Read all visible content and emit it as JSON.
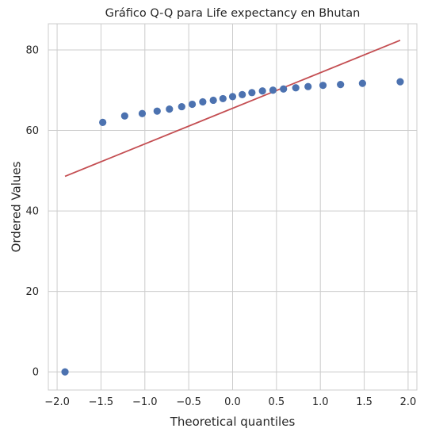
{
  "chart_data": {
    "type": "scatter",
    "title": "Gráfico Q-Q para Life expectancy en Bhutan",
    "xlabel": "Theoretical quantiles",
    "ylabel": "Ordered Values",
    "xlim": [
      -2.1,
      2.1
    ],
    "ylim": [
      -4.5,
      86.5
    ],
    "xticks": [
      -2.0,
      -1.5,
      -1.0,
      -0.5,
      0.0,
      0.5,
      1.0,
      1.5,
      2.0
    ],
    "xtick_labels": [
      "−2.0",
      "−1.5",
      "−1.0",
      "−0.5",
      "0.0",
      "0.5",
      "1.0",
      "1.5",
      "2.0"
    ],
    "yticks": [
      0,
      20,
      40,
      60,
      80
    ],
    "ytick_labels": [
      "0",
      "20",
      "40",
      "60",
      "80"
    ],
    "grid": true,
    "series": [
      {
        "type": "scatter",
        "color": "#4c72b0",
        "points": [
          [
            -1.91,
            0.0
          ],
          [
            -1.48,
            62.0
          ],
          [
            -1.23,
            63.6
          ],
          [
            -1.03,
            64.2
          ],
          [
            -0.86,
            64.8
          ],
          [
            -0.72,
            65.3
          ],
          [
            -0.58,
            65.9
          ],
          [
            -0.46,
            66.5
          ],
          [
            -0.34,
            67.1
          ],
          [
            -0.22,
            67.5
          ],
          [
            -0.11,
            67.9
          ],
          [
            0.0,
            68.4
          ],
          [
            0.11,
            68.9
          ],
          [
            0.22,
            69.4
          ],
          [
            0.34,
            69.8
          ],
          [
            0.46,
            70.0
          ],
          [
            0.58,
            70.3
          ],
          [
            0.72,
            70.6
          ],
          [
            0.86,
            70.9
          ],
          [
            1.03,
            71.2
          ],
          [
            1.23,
            71.4
          ],
          [
            1.48,
            71.7
          ],
          [
            1.91,
            72.1
          ]
        ]
      },
      {
        "type": "line",
        "color": "#c44e52",
        "points": [
          [
            -1.91,
            48.6
          ],
          [
            1.91,
            82.4
          ]
        ]
      }
    ]
  }
}
